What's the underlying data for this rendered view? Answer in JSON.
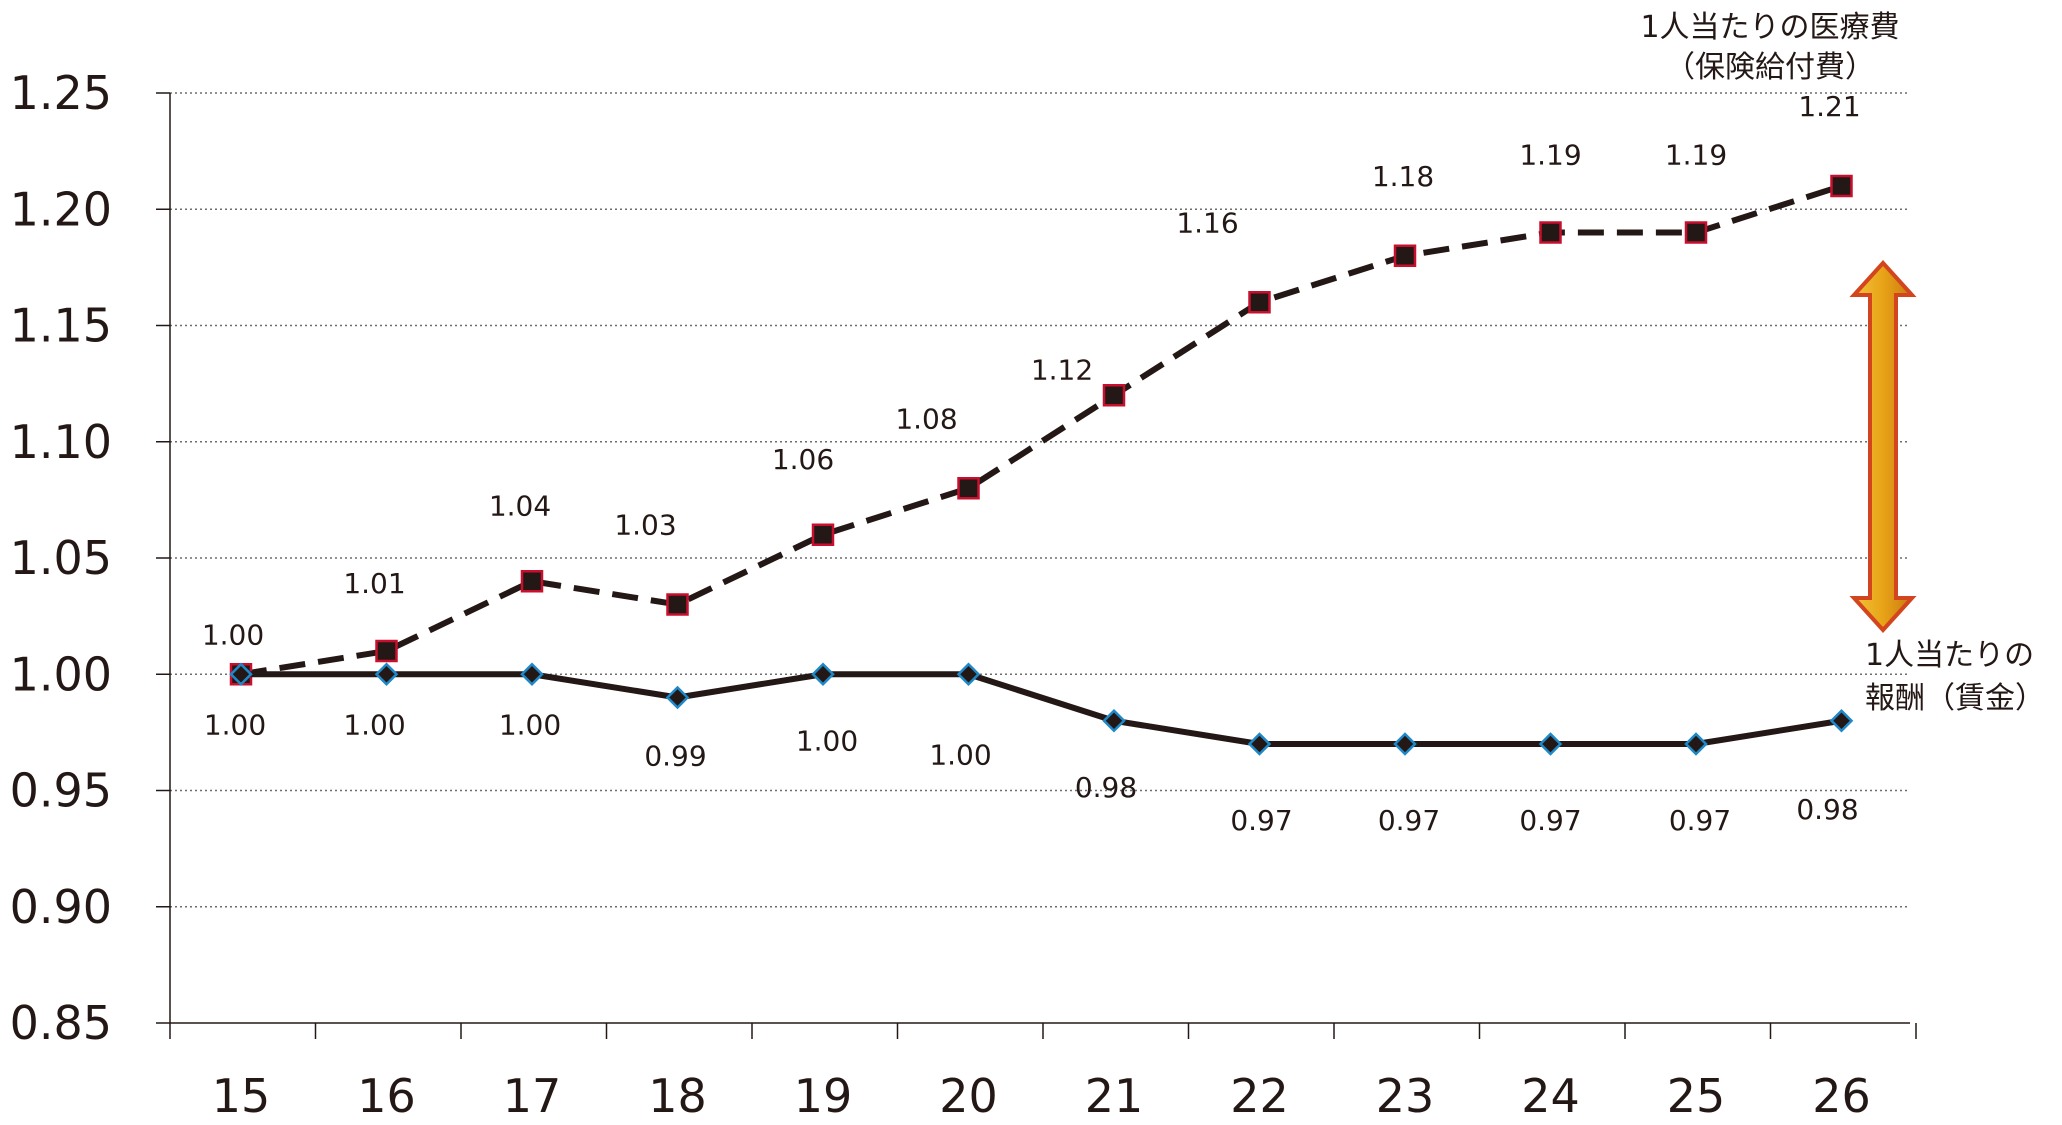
{
  "chart_data": {
    "type": "line",
    "x": [
      "15",
      "16",
      "17",
      "18",
      "19",
      "20",
      "21",
      "22",
      "23",
      "24",
      "25",
      "26"
    ],
    "yticks": [
      "0.85",
      "0.90",
      "0.95",
      "1.00",
      "1.05",
      "1.10",
      "1.15",
      "1.20",
      "1.25"
    ],
    "ylim": [
      0.85,
      1.25
    ],
    "grid": true,
    "series": [
      {
        "name": "1人当たりの医療費（保険給付費）",
        "name_lines": [
          "1人当たりの医療費",
          "（保険給付費）"
        ],
        "values": [
          1.0,
          1.01,
          1.04,
          1.03,
          1.06,
          1.08,
          1.12,
          1.16,
          1.18,
          1.19,
          1.19,
          1.21
        ],
        "labels": [
          "1.00",
          "1.01",
          "1.04",
          "1.03",
          "1.06",
          "1.08",
          "1.12",
          "1.16",
          "1.18",
          "1.19",
          "1.19",
          "1.21"
        ],
        "line_style": "dashed",
        "marker": "square",
        "line_color": "#231815",
        "marker_fill": "#231815",
        "marker_edge": "#c8102e"
      },
      {
        "name": "1人当たりの報酬（賃金）",
        "name_lines": [
          "1人当たりの",
          "報酬（賃金）"
        ],
        "values": [
          1.0,
          1.0,
          1.0,
          0.99,
          1.0,
          1.0,
          0.98,
          0.97,
          0.97,
          0.97,
          0.97,
          0.98
        ],
        "labels": [
          "1.00",
          "1.00",
          "1.00",
          "0.99",
          "1.00",
          "1.00",
          "0.98",
          "0.97",
          "0.97",
          "0.97",
          "0.97",
          "0.98"
        ],
        "line_style": "solid",
        "marker": "diamond",
        "line_color": "#231815",
        "marker_fill": "#231815",
        "marker_edge": "#1e88c8"
      }
    ],
    "gap_arrow": {
      "fill": "#e8a317",
      "edge": "#d2451e"
    }
  }
}
